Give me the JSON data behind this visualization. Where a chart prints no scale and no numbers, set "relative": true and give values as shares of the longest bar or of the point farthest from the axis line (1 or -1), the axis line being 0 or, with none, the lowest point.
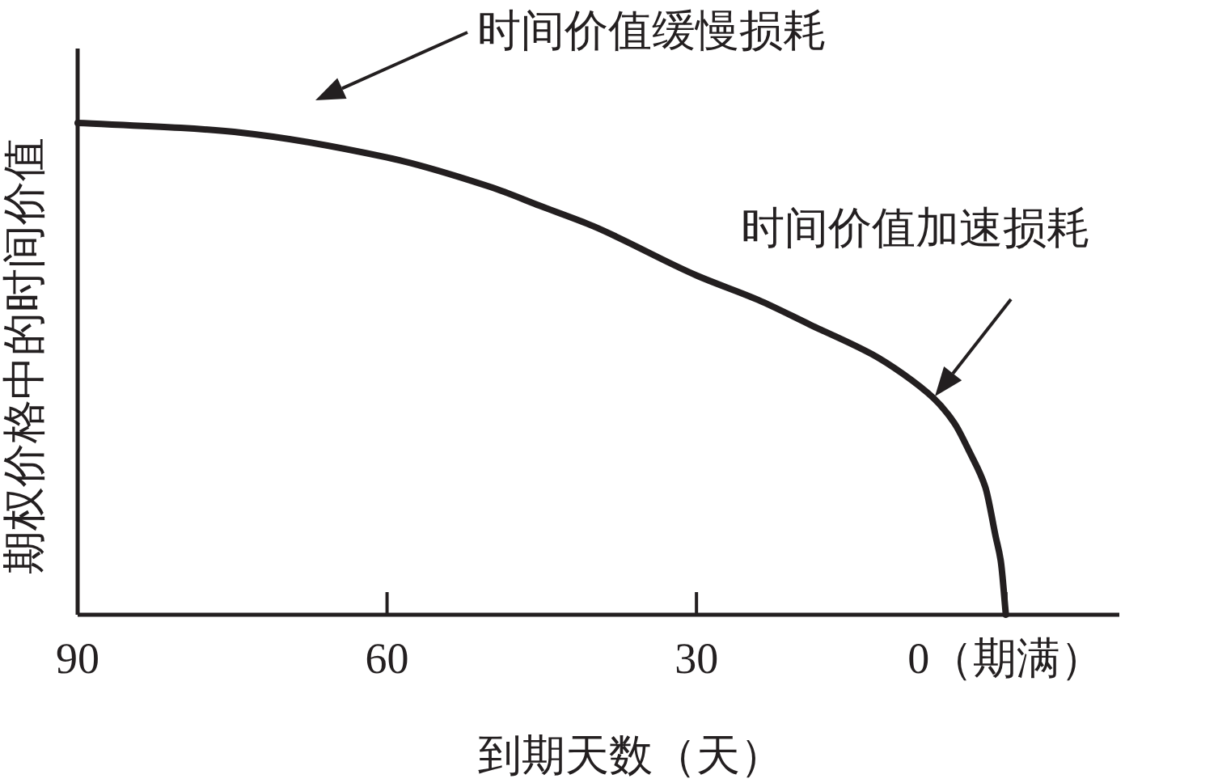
{
  "chart_data": {
    "type": "line",
    "relative": true,
    "xlabel": "到期天数（天）",
    "ylabel": "期权价格中的时间价值",
    "x": [
      90,
      80,
      74,
      60,
      50,
      45,
      40,
      30,
      24,
      19,
      13,
      10,
      7,
      5,
      3.5,
      2,
      1,
      0.5,
      0
    ],
    "xlim": [
      90,
      -11
    ],
    "xticks": [
      90,
      60,
      30,
      {
        "value": 0,
        "label": "0（期满）"
      }
    ],
    "series": [
      {
        "color": "#231f20",
        "values": [
          1,
          0.99,
          0.98,
          0.93,
          0.87,
          0.83,
          0.79,
          0.69,
          0.64,
          0.59,
          0.53,
          0.49,
          0.44,
          0.39,
          0.33,
          0.26,
          0.16,
          0.11,
          0
        ]
      }
    ],
    "annotations": [
      "时间价值缓慢损耗",
      "时间价值加速损耗"
    ]
  }
}
